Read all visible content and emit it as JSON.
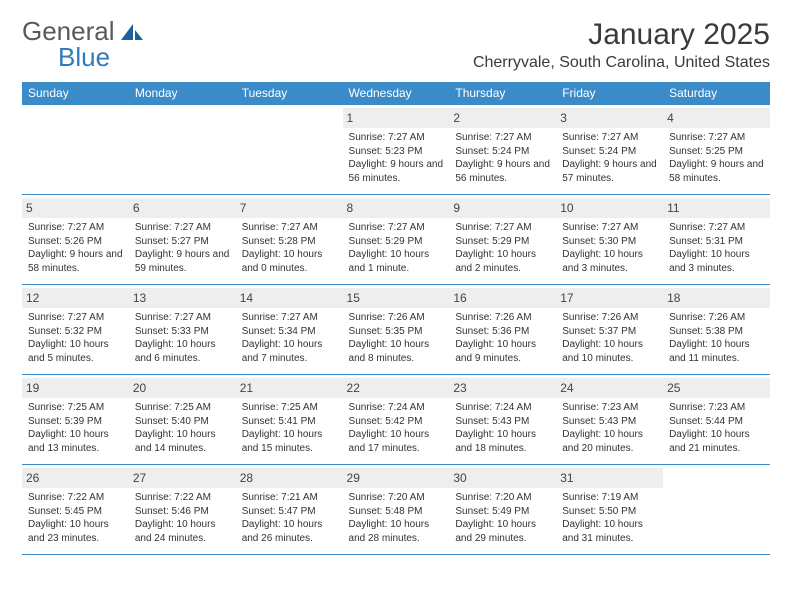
{
  "logo": {
    "word1": "General",
    "word2": "Blue",
    "icon_color": "#1f5f9e"
  },
  "title": "January 2025",
  "location": "Cherryvale, South Carolina, United States",
  "colors": {
    "header_bg": "#3b8bc9",
    "header_text": "#ffffff",
    "daynum_bg": "#eeeeee",
    "rule": "#3b8bc9",
    "text": "#333333"
  },
  "day_headers": [
    "Sunday",
    "Monday",
    "Tuesday",
    "Wednesday",
    "Thursday",
    "Friday",
    "Saturday"
  ],
  "weeks": [
    [
      null,
      null,
      null,
      {
        "num": "1",
        "sunrise": "Sunrise: 7:27 AM",
        "sunset": "Sunset: 5:23 PM",
        "daylight": "Daylight: 9 hours and 56 minutes."
      },
      {
        "num": "2",
        "sunrise": "Sunrise: 7:27 AM",
        "sunset": "Sunset: 5:24 PM",
        "daylight": "Daylight: 9 hours and 56 minutes."
      },
      {
        "num": "3",
        "sunrise": "Sunrise: 7:27 AM",
        "sunset": "Sunset: 5:24 PM",
        "daylight": "Daylight: 9 hours and 57 minutes."
      },
      {
        "num": "4",
        "sunrise": "Sunrise: 7:27 AM",
        "sunset": "Sunset: 5:25 PM",
        "daylight": "Daylight: 9 hours and 58 minutes."
      }
    ],
    [
      {
        "num": "5",
        "sunrise": "Sunrise: 7:27 AM",
        "sunset": "Sunset: 5:26 PM",
        "daylight": "Daylight: 9 hours and 58 minutes."
      },
      {
        "num": "6",
        "sunrise": "Sunrise: 7:27 AM",
        "sunset": "Sunset: 5:27 PM",
        "daylight": "Daylight: 9 hours and 59 minutes."
      },
      {
        "num": "7",
        "sunrise": "Sunrise: 7:27 AM",
        "sunset": "Sunset: 5:28 PM",
        "daylight": "Daylight: 10 hours and 0 minutes."
      },
      {
        "num": "8",
        "sunrise": "Sunrise: 7:27 AM",
        "sunset": "Sunset: 5:29 PM",
        "daylight": "Daylight: 10 hours and 1 minute."
      },
      {
        "num": "9",
        "sunrise": "Sunrise: 7:27 AM",
        "sunset": "Sunset: 5:29 PM",
        "daylight": "Daylight: 10 hours and 2 minutes."
      },
      {
        "num": "10",
        "sunrise": "Sunrise: 7:27 AM",
        "sunset": "Sunset: 5:30 PM",
        "daylight": "Daylight: 10 hours and 3 minutes."
      },
      {
        "num": "11",
        "sunrise": "Sunrise: 7:27 AM",
        "sunset": "Sunset: 5:31 PM",
        "daylight": "Daylight: 10 hours and 3 minutes."
      }
    ],
    [
      {
        "num": "12",
        "sunrise": "Sunrise: 7:27 AM",
        "sunset": "Sunset: 5:32 PM",
        "daylight": "Daylight: 10 hours and 5 minutes."
      },
      {
        "num": "13",
        "sunrise": "Sunrise: 7:27 AM",
        "sunset": "Sunset: 5:33 PM",
        "daylight": "Daylight: 10 hours and 6 minutes."
      },
      {
        "num": "14",
        "sunrise": "Sunrise: 7:27 AM",
        "sunset": "Sunset: 5:34 PM",
        "daylight": "Daylight: 10 hours and 7 minutes."
      },
      {
        "num": "15",
        "sunrise": "Sunrise: 7:26 AM",
        "sunset": "Sunset: 5:35 PM",
        "daylight": "Daylight: 10 hours and 8 minutes."
      },
      {
        "num": "16",
        "sunrise": "Sunrise: 7:26 AM",
        "sunset": "Sunset: 5:36 PM",
        "daylight": "Daylight: 10 hours and 9 minutes."
      },
      {
        "num": "17",
        "sunrise": "Sunrise: 7:26 AM",
        "sunset": "Sunset: 5:37 PM",
        "daylight": "Daylight: 10 hours and 10 minutes."
      },
      {
        "num": "18",
        "sunrise": "Sunrise: 7:26 AM",
        "sunset": "Sunset: 5:38 PM",
        "daylight": "Daylight: 10 hours and 11 minutes."
      }
    ],
    [
      {
        "num": "19",
        "sunrise": "Sunrise: 7:25 AM",
        "sunset": "Sunset: 5:39 PM",
        "daylight": "Daylight: 10 hours and 13 minutes."
      },
      {
        "num": "20",
        "sunrise": "Sunrise: 7:25 AM",
        "sunset": "Sunset: 5:40 PM",
        "daylight": "Daylight: 10 hours and 14 minutes."
      },
      {
        "num": "21",
        "sunrise": "Sunrise: 7:25 AM",
        "sunset": "Sunset: 5:41 PM",
        "daylight": "Daylight: 10 hours and 15 minutes."
      },
      {
        "num": "22",
        "sunrise": "Sunrise: 7:24 AM",
        "sunset": "Sunset: 5:42 PM",
        "daylight": "Daylight: 10 hours and 17 minutes."
      },
      {
        "num": "23",
        "sunrise": "Sunrise: 7:24 AM",
        "sunset": "Sunset: 5:43 PM",
        "daylight": "Daylight: 10 hours and 18 minutes."
      },
      {
        "num": "24",
        "sunrise": "Sunrise: 7:23 AM",
        "sunset": "Sunset: 5:43 PM",
        "daylight": "Daylight: 10 hours and 20 minutes."
      },
      {
        "num": "25",
        "sunrise": "Sunrise: 7:23 AM",
        "sunset": "Sunset: 5:44 PM",
        "daylight": "Daylight: 10 hours and 21 minutes."
      }
    ],
    [
      {
        "num": "26",
        "sunrise": "Sunrise: 7:22 AM",
        "sunset": "Sunset: 5:45 PM",
        "daylight": "Daylight: 10 hours and 23 minutes."
      },
      {
        "num": "27",
        "sunrise": "Sunrise: 7:22 AM",
        "sunset": "Sunset: 5:46 PM",
        "daylight": "Daylight: 10 hours and 24 minutes."
      },
      {
        "num": "28",
        "sunrise": "Sunrise: 7:21 AM",
        "sunset": "Sunset: 5:47 PM",
        "daylight": "Daylight: 10 hours and 26 minutes."
      },
      {
        "num": "29",
        "sunrise": "Sunrise: 7:20 AM",
        "sunset": "Sunset: 5:48 PM",
        "daylight": "Daylight: 10 hours and 28 minutes."
      },
      {
        "num": "30",
        "sunrise": "Sunrise: 7:20 AM",
        "sunset": "Sunset: 5:49 PM",
        "daylight": "Daylight: 10 hours and 29 minutes."
      },
      {
        "num": "31",
        "sunrise": "Sunrise: 7:19 AM",
        "sunset": "Sunset: 5:50 PM",
        "daylight": "Daylight: 10 hours and 31 minutes."
      },
      null
    ]
  ]
}
